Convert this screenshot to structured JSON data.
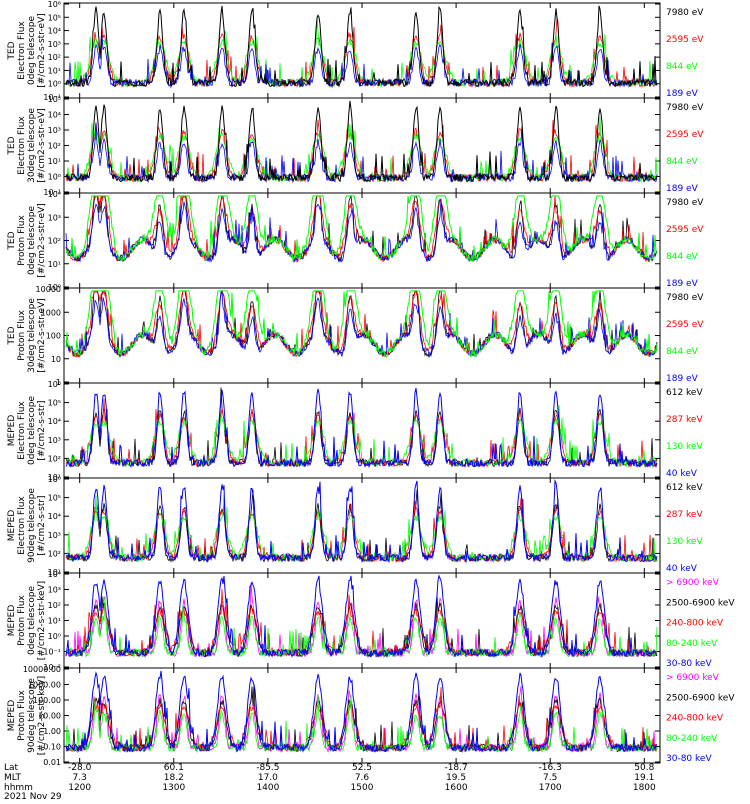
{
  "colors": {
    "black": "#000000",
    "red": "#ff0000",
    "green": "#00ff00",
    "blue": "#0000ff",
    "magenta": "#ff00ff"
  },
  "chart_data": {
    "type": "line",
    "stack_of_panels": 8,
    "x_axis": {
      "range_hhmm": [
        1150,
        1810
      ],
      "tick_labels": [
        {
          "lat": "-28.0",
          "mlt": "7.3",
          "hhmm": "1200"
        },
        {
          "lat": "60.1",
          "mlt": "18.2",
          "hhmm": "1300"
        },
        {
          "lat": "-85.5",
          "mlt": "17.0",
          "hhmm": "1400"
        },
        {
          "lat": "52.5",
          "mlt": "7.6",
          "hhmm": "1500"
        },
        {
          "lat": "-18.7",
          "mlt": "19.5",
          "hhmm": "1600"
        },
        {
          "lat": "-16.3",
          "mlt": "7.5",
          "hhmm": "1700"
        },
        {
          "lat": "50.8",
          "mlt": "19.1",
          "hhmm": "1800"
        }
      ],
      "row_labels": [
        "Lat",
        "MLT",
        "hhmm"
      ],
      "date_label": "2021 Nov 29"
    },
    "panels": [
      {
        "ylabel": [
          "TED",
          "Electron Flux",
          "0deg telescope",
          "[#/cm2-s-str-eV]"
        ],
        "yscale": "log",
        "y_tick_labels": [
          "10⁻¹",
          "10⁰",
          "10¹",
          "10²",
          "10³",
          "10⁴",
          "10⁵",
          "10⁶"
        ],
        "legend": [
          "7980 eV",
          "2595 eV",
          "844 eV",
          "189 eV"
        ],
        "legend_colors": [
          "#000000",
          "#ff0000",
          "#00ff00",
          "#0000ff"
        ],
        "dominant_series": "7980 eV"
      },
      {
        "ylabel": [
          "TED",
          "Electron Flux",
          "30deg telescope",
          "[#/cm2-s-str-eV]"
        ],
        "yscale": "log",
        "y_tick_labels": [
          "10⁻¹",
          "10⁰",
          "10¹",
          "10²",
          "10³",
          "10⁴",
          "10⁵"
        ],
        "legend": [
          "7980 eV",
          "2595 eV",
          "844 eV",
          "189 eV"
        ],
        "legend_colors": [
          "#000000",
          "#ff0000",
          "#00ff00",
          "#0000ff"
        ],
        "dominant_series": "7980 eV"
      },
      {
        "ylabel": [
          "TED",
          "Proton Flux",
          "0deg telescope",
          "[#/cm2-s-str-eV]"
        ],
        "yscale": "log",
        "y_tick_labels": [
          "10⁰",
          "10¹",
          "10²",
          "10³",
          "10⁴"
        ],
        "legend": [
          "7980 eV",
          "2595 eV",
          "844 eV",
          "189 eV"
        ],
        "legend_colors": [
          "#000000",
          "#ff0000",
          "#00ff00",
          "#0000ff"
        ],
        "dominant_series": "844 eV"
      },
      {
        "ylabel": [
          "TED",
          "Proton Flux",
          "30deg telescope",
          "[#/cm2-s-str-eV]"
        ],
        "yscale": "log",
        "y_tick_labels": [
          "1",
          "10",
          "100",
          "1000",
          "10000"
        ],
        "legend": [
          "7980 eV",
          "2595 eV",
          "844 eV",
          "189 eV"
        ],
        "legend_colors": [
          "#000000",
          "#ff0000",
          "#00ff00",
          "#0000ff"
        ],
        "dominant_series": "844 eV"
      },
      {
        "ylabel": [
          "MEPED",
          "Electron Flux",
          "0deg telescope",
          "[#/cm2-s-str]"
        ],
        "yscale": "log",
        "y_tick_labels": [
          "10¹",
          "10²",
          "10³",
          "10⁴",
          "10⁵",
          "10⁶"
        ],
        "legend": [
          "612 keV",
          "287 keV",
          "130 keV",
          "40 keV"
        ],
        "legend_colors": [
          "#000000",
          "#ff0000",
          "#00ff00",
          "#0000ff"
        ],
        "dominant_series": "40 keV"
      },
      {
        "ylabel": [
          "MEPED",
          "Electron Flux",
          "90deg telescope",
          "[#/cm2-s-str]"
        ],
        "yscale": "log",
        "y_tick_labels": [
          "10¹",
          "10²",
          "10³",
          "10⁴",
          "10⁵",
          "10⁶"
        ],
        "legend": [
          "612 keV",
          "287 keV",
          "130 keV",
          "40 keV"
        ],
        "legend_colors": [
          "#000000",
          "#ff0000",
          "#00ff00",
          "#0000ff"
        ],
        "dominant_series": "40 keV"
      },
      {
        "ylabel": [
          "MEPED",
          "Proton Flux",
          "0deg telescope",
          "[#/cm2-s-str-keV]"
        ],
        "yscale": "log",
        "y_tick_labels": [
          "10⁻²",
          "10⁻¹",
          "10⁰",
          "10¹",
          "10²",
          "10³",
          "10⁴"
        ],
        "legend": [
          "> 6900 keV",
          "2500-6900 keV",
          "240-800 keV",
          "80-240 keV",
          "30-80 keV"
        ],
        "legend_colors": [
          "#ff00ff",
          "#000000",
          "#ff0000",
          "#00ff00",
          "#0000ff"
        ],
        "dominant_series": "30-80 keV"
      },
      {
        "ylabel": [
          "MEPED",
          "Proton Flux",
          "90deg telescope",
          "[#/cm2-s-str-keV]"
        ],
        "yscale": "log",
        "y_tick_labels": [
          "0.01",
          "0.10",
          "1.00",
          "10.00",
          "100.00",
          "1000.00",
          "10000.00"
        ],
        "legend": [
          "> 6900 keV",
          "2500-6900 keV",
          "240-800 keV",
          "80-240 keV",
          "30-80 keV"
        ],
        "legend_colors": [
          "#ff00ff",
          "#000000",
          "#ff0000",
          "#00ff00",
          "#0000ff"
        ],
        "dominant_series": "30-80 keV"
      }
    ]
  }
}
